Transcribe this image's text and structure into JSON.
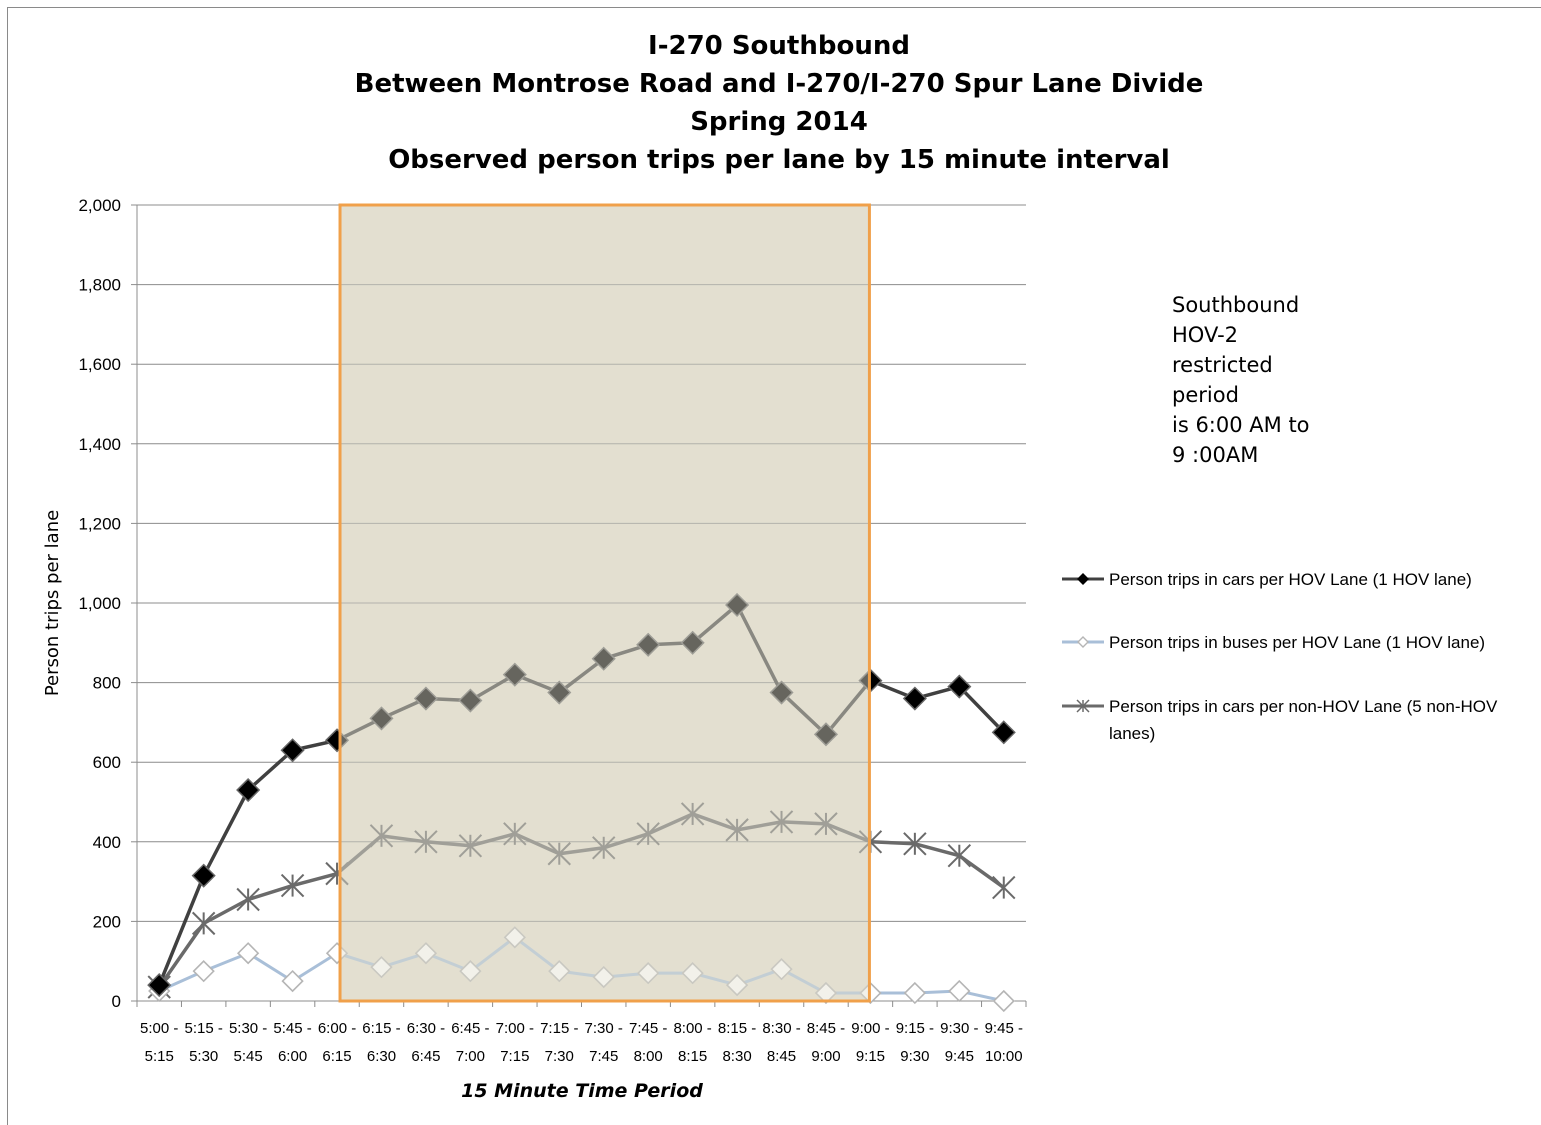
{
  "chart_data": {
    "type": "line",
    "title_lines": [
      "I-270 Southbound",
      "Between Montrose Road and I-270/I-270 Spur Lane Divide",
      "Spring 2014",
      "Observed person trips per lane by 15 minute interval"
    ],
    "xlabel": "15 Minute Time Period",
    "ylabel": "Person trips per lane",
    "ylim": [
      0,
      2000
    ],
    "yticks": [
      0,
      200,
      400,
      600,
      800,
      1000,
      1200,
      1400,
      1600,
      1800,
      2000
    ],
    "ytick_labels": [
      "0",
      "200",
      "400",
      "600",
      "800",
      "1,000",
      "1,200",
      "1,400",
      "1,600",
      "1,800",
      "2,000"
    ],
    "categories": [
      [
        "5:00 -",
        "5:15"
      ],
      [
        "5:15 -",
        "5:30"
      ],
      [
        "5:30 -",
        "5:45"
      ],
      [
        "5:45 -",
        "6:00"
      ],
      [
        "6:00 -",
        "6:15"
      ],
      [
        "6:15 -",
        "6:30"
      ],
      [
        "6:30 -",
        "6:45"
      ],
      [
        "6:45 -",
        "7:00"
      ],
      [
        "7:00 -",
        "7:15"
      ],
      [
        "7:15 -",
        "7:30"
      ],
      [
        "7:30 -",
        "7:45"
      ],
      [
        "7:45 -",
        "8:00"
      ],
      [
        "8:00 -",
        "8:15"
      ],
      [
        "8:15 -",
        "8:30"
      ],
      [
        "8:30 -",
        "8:45"
      ],
      [
        "8:45 -",
        "9:00"
      ],
      [
        "9:00 -",
        "9:15"
      ],
      [
        "9:15 -",
        "9:30"
      ],
      [
        "9:30 -",
        "9:45"
      ],
      [
        "9:45 -",
        "10:00"
      ]
    ],
    "series": [
      {
        "name": "Person trips in cars per HOV Lane (1 HOV lane)",
        "color": "#404040",
        "marker": "filled-diamond",
        "values": [
          40,
          315,
          530,
          630,
          655,
          710,
          760,
          755,
          820,
          775,
          860,
          895,
          900,
          995,
          775,
          670,
          805,
          760,
          790,
          675
        ]
      },
      {
        "name": "Person trips in buses per HOV Lane (1 HOV lane)",
        "color": "#a9bfd8",
        "marker": "open-diamond",
        "values": [
          25,
          75,
          120,
          50,
          120,
          85,
          120,
          75,
          160,
          75,
          60,
          70,
          70,
          40,
          80,
          20,
          20,
          20,
          25,
          0
        ]
      },
      {
        "name": "Person trips in cars per non-HOV Lane (5 non-HOV lanes)",
        "color": "#6a6a6a",
        "marker": "asterisk",
        "values": [
          35,
          195,
          255,
          290,
          320,
          415,
          400,
          390,
          420,
          370,
          385,
          420,
          470,
          430,
          450,
          445,
          400,
          395,
          365,
          285
        ]
      }
    ],
    "legend_placement": "right",
    "legend_labels": [
      [
        "Person trips in cars per HOV Lane (1 HOV lane)"
      ],
      [
        "Person trips in buses per HOV Lane (1 HOV lane)"
      ],
      [
        "Person trips in cars per non-HOV Lane (5 non-HOV",
        "lanes)"
      ]
    ],
    "highlight_region": {
      "from_category": "6:00 - 6:15",
      "to_category": "9:00 - 9:15",
      "fill": "#e3dfd0",
      "border": "#f0a04a"
    },
    "annotation_lines": [
      "Southbound",
      "HOV-2",
      "restricted",
      "period",
      "is 6:00 AM to",
      "9 :00AM"
    ],
    "grid": true
  }
}
